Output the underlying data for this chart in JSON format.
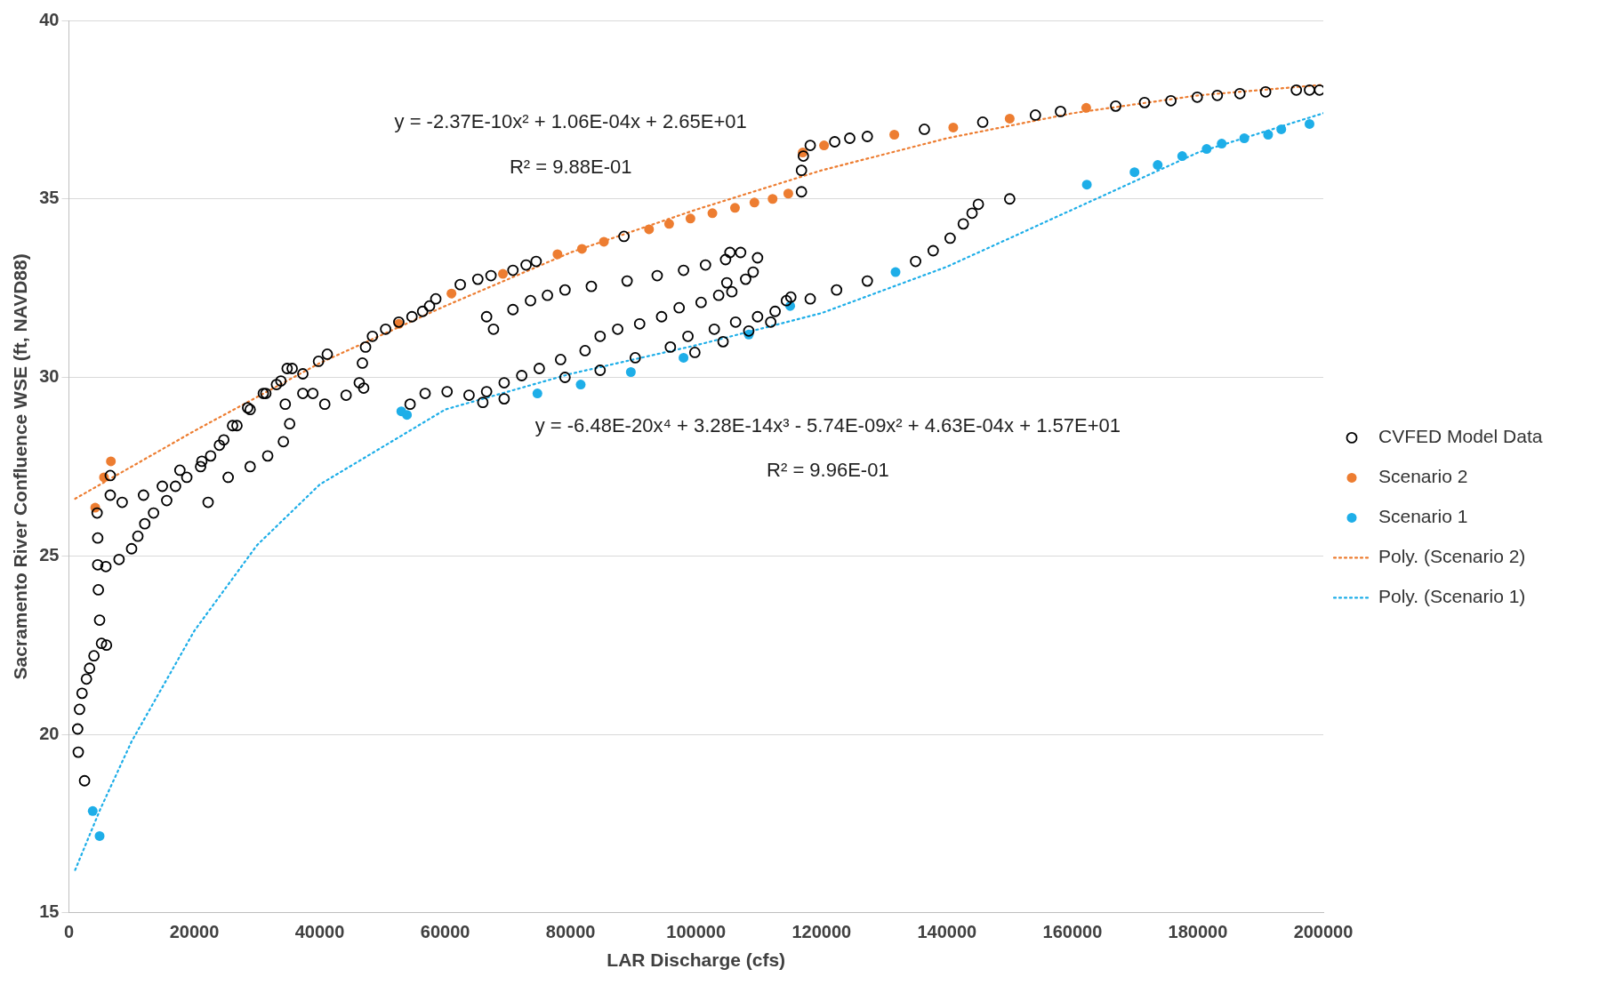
{
  "chart_data": {
    "type": "scatter",
    "xlabel": "LAR Discharge (cfs)",
    "ylabel": "Sacramento River Confluence WSE (ft, NAVD88)",
    "xlim": [
      0,
      200000
    ],
    "xticks": [
      0,
      20000,
      40000,
      60000,
      80000,
      100000,
      120000,
      140000,
      160000,
      180000,
      200000
    ],
    "ylim": [
      15,
      40
    ],
    "yticks": [
      15,
      20,
      25,
      30,
      35,
      40
    ],
    "grid": "y",
    "legend": "right",
    "annotations": [
      "y = -2.37E-10x² + 1.06E-04x + 2.65E+01",
      "R² = 9.88E-01",
      "y = -6.48E-20x⁴ + 3.28E-14x³ - 5.74E-09x² + 4.63E-04x + 1.57E+01",
      "R² = 9.96E-01"
    ],
    "series": [
      {
        "name": "CVFED Model Data",
        "color": "#000000",
        "marker": "circle",
        "x": [
          1400,
          1500,
          1700,
          2100,
          2500,
          2800,
          3300,
          4000,
          5200,
          6000,
          4900,
          4700,
          4600,
          4600,
          4500,
          5900,
          8000,
          10000,
          11000,
          12100,
          13500,
          15600,
          17000,
          18800,
          21000,
          22600,
          24700,
          26800,
          28900,
          31400,
          33800,
          35600,
          22200,
          6600,
          6600,
          8500,
          11900,
          14900,
          17700,
          21200,
          24000,
          26100,
          28500,
          31000,
          33100,
          37300,
          39800,
          41200,
          25400,
          28900,
          31700,
          34200,
          35200,
          34500,
          34800,
          37300,
          38900,
          40800,
          44200,
          47000,
          46300,
          46800,
          47300,
          48400,
          50500,
          52600,
          54700,
          56400,
          57500,
          58500,
          62400,
          65200,
          67300,
          70800,
          72900,
          74500,
          88500,
          66600,
          67700,
          70800,
          73600,
          76300,
          79100,
          83300,
          89000,
          93800,
          98000,
          101500,
          104700,
          105400,
          107100,
          109800,
          109100,
          107900,
          105700,
          54400,
          56800,
          60300,
          63800,
          66000,
          66600,
          69400,
          72200,
          75000,
          78400,
          82300,
          84700,
          87500,
          91000,
          94500,
          97300,
          100800,
          103600,
          104900,
          98700,
          102900,
          106300,
          109800,
          112600,
          114400,
          115100,
          69400,
          79100,
          84700,
          90300,
          95900,
          99800,
          104300,
          108400,
          111900,
          118200,
          122400,
          127300,
          135000,
          137800,
          140500,
          142600,
          144000,
          145000,
          150000,
          116800,
          116800,
          117100,
          118200,
          122100,
          124500,
          127300,
          136400,
          145700,
          154100,
          158100,
          166900,
          171500,
          175700,
          179900,
          183100,
          186700,
          190800,
          195700,
          197800,
          199400
        ],
        "values": [
          20.15,
          19.5,
          20.7,
          21.15,
          18.7,
          21.55,
          21.85,
          22.2,
          22.55,
          22.5,
          23.2,
          24.05,
          24.75,
          25.5,
          26.2,
          24.7,
          24.9,
          25.2,
          25.55,
          25.9,
          26.2,
          26.55,
          26.95,
          27.2,
          27.5,
          27.8,
          28.25,
          28.65,
          29.1,
          29.55,
          29.9,
          30.25,
          26.5,
          27.25,
          26.7,
          26.5,
          26.7,
          26.95,
          27.4,
          27.65,
          28.1,
          28.65,
          29.15,
          29.55,
          29.8,
          30.1,
          30.45,
          30.65,
          27.2,
          27.5,
          27.8,
          28.2,
          28.7,
          29.25,
          30.25,
          29.55,
          29.55,
          29.25,
          29.5,
          29.7,
          29.85,
          30.4,
          30.85,
          31.15,
          31.35,
          31.55,
          31.7,
          31.85,
          32.0,
          32.2,
          32.6,
          32.75,
          32.85,
          33.0,
          33.15,
          33.25,
          33.95,
          31.7,
          31.35,
          31.9,
          32.15,
          32.3,
          32.45,
          32.55,
          32.7,
          32.85,
          33.0,
          33.15,
          33.3,
          33.5,
          33.5,
          33.35,
          32.95,
          32.75,
          32.4,
          29.25,
          29.55,
          29.6,
          29.5,
          29.3,
          29.6,
          29.85,
          30.05,
          30.25,
          30.5,
          30.75,
          31.15,
          31.35,
          31.5,
          31.7,
          31.95,
          32.1,
          32.3,
          32.65,
          31.15,
          31.35,
          31.55,
          31.7,
          31.85,
          32.15,
          32.25,
          29.4,
          30.0,
          30.2,
          30.55,
          30.85,
          30.7,
          31.0,
          31.3,
          31.55,
          32.2,
          32.45,
          32.7,
          33.25,
          33.55,
          33.9,
          34.3,
          34.6,
          34.85,
          35.0,
          35.2,
          35.8,
          36.2,
          36.5,
          36.6,
          36.7,
          36.75,
          36.95,
          37.15,
          37.35,
          37.45,
          37.6,
          37.7,
          37.75,
          37.85,
          37.9,
          37.95,
          38.0,
          38.05,
          38.05,
          38.05
        ]
      },
      {
        "name": "Scenario 2",
        "color": "#ed7d31",
        "marker": "circle",
        "x": [
          4200,
          5600,
          6700,
          52600,
          61000,
          69200,
          77900,
          81800,
          85300,
          92500,
          95700,
          99100,
          102600,
          106200,
          109300,
          112200,
          114700,
          117000,
          120400,
          131600,
          141000,
          150000,
          162200
        ],
        "values": [
          26.35,
          27.2,
          27.65,
          31.5,
          32.35,
          32.9,
          33.45,
          33.6,
          33.8,
          34.15,
          34.3,
          34.45,
          34.6,
          34.75,
          34.9,
          35.0,
          35.15,
          36.3,
          36.5,
          36.8,
          37.0,
          37.25,
          37.55
        ]
      },
      {
        "name": "Scenario 1",
        "color": "#1eaee8",
        "marker": "circle",
        "x": [
          3800,
          4900,
          53000,
          53900,
          74700,
          81600,
          89600,
          98000,
          108400,
          115000,
          131800,
          162300,
          169900,
          173600,
          177500,
          181400,
          183800,
          187400,
          191200,
          193300,
          197800
        ],
        "values": [
          17.85,
          17.15,
          29.05,
          28.95,
          29.55,
          29.8,
          30.15,
          30.55,
          31.2,
          32.0,
          32.95,
          35.4,
          35.75,
          35.95,
          36.2,
          36.4,
          36.55,
          36.7,
          36.8,
          36.95,
          37.1
        ]
      },
      {
        "name": "Poly. (Scenario 2)",
        "type": "line",
        "line_style": "dotted",
        "marker": "none",
        "color": "#ed7d31",
        "x": [
          1000,
          20000,
          40000,
          60000,
          80000,
          100000,
          120000,
          140000,
          160000,
          180000,
          200000
        ],
        "values": [
          26.6,
          28.5,
          30.4,
          32.0,
          33.5,
          34.7,
          35.8,
          36.7,
          37.4,
          37.9,
          38.2
        ]
      },
      {
        "name": "Poly. (Scenario 1)",
        "type": "line",
        "line_style": "dotted",
        "marker": "none",
        "color": "#1eaee8",
        "x": [
          1000,
          5000,
          10000,
          20000,
          30000,
          40000,
          60000,
          80000,
          100000,
          120000,
          140000,
          160000,
          180000,
          200000
        ],
        "values": [
          16.2,
          17.9,
          19.8,
          22.9,
          25.3,
          27.0,
          29.1,
          30.1,
          30.9,
          31.8,
          33.1,
          34.7,
          36.3,
          37.4
        ]
      }
    ]
  }
}
